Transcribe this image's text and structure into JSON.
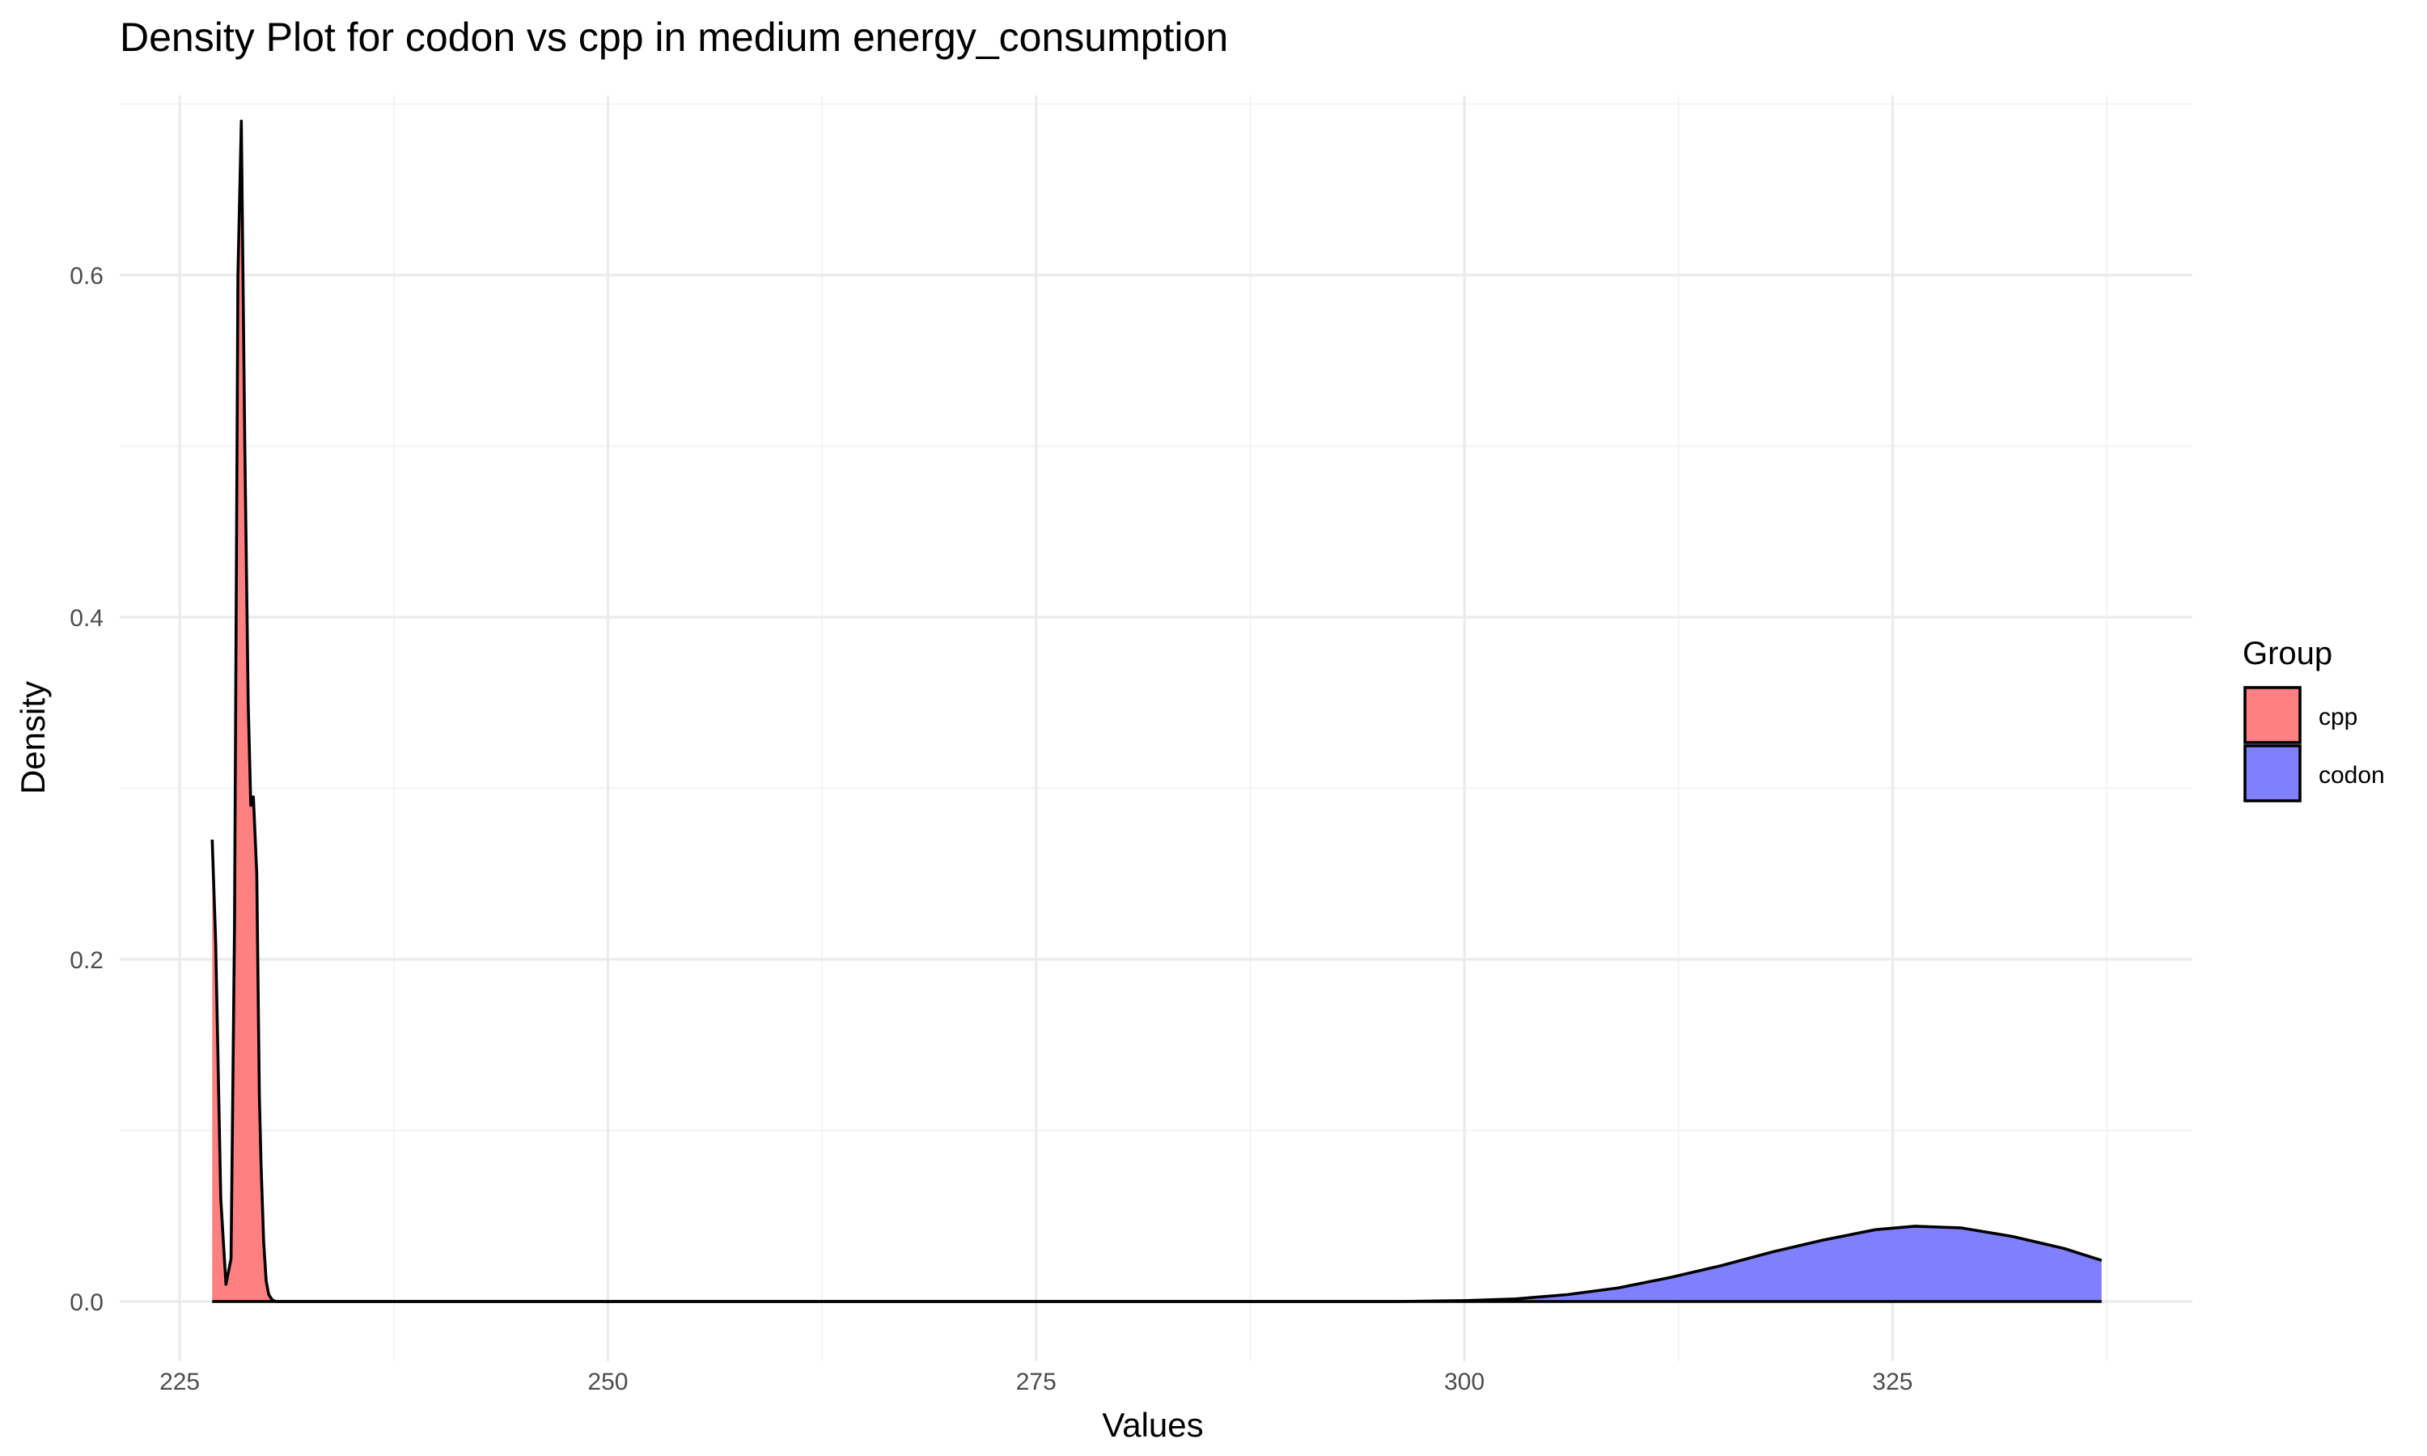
{
  "chart_data": {
    "type": "area",
    "title": "Density Plot for codon vs cpp in medium energy_consumption",
    "xlabel": "Values",
    "ylabel": "Density",
    "xlim": [
      221.5,
      342.5
    ],
    "ylim": [
      -0.035,
      0.705
    ],
    "x_ticks": [
      225,
      250,
      275,
      300,
      325
    ],
    "x_tick_labels": [
      "225",
      "250",
      "275",
      "300",
      "325"
    ],
    "y_ticks": [
      0.0,
      0.2,
      0.4,
      0.6
    ],
    "y_tick_labels": [
      "0.0",
      "0.2",
      "0.4",
      "0.6"
    ],
    "grid": true,
    "legend": {
      "title": "Group",
      "position": "right"
    },
    "series": [
      {
        "name": "cpp",
        "color": "#ff8080",
        "x": [
          226.9,
          227.1,
          227.4,
          227.7,
          228.0,
          228.2,
          228.4,
          228.6,
          228.8,
          229.0,
          229.15,
          229.3,
          229.5,
          229.65,
          229.75,
          229.9,
          230.05,
          230.2,
          230.4,
          230.6,
          230.8,
          231.0,
          232.0,
          250.0,
          275.0,
          300.0,
          320.0,
          330.0,
          337.2
        ],
        "y": [
          0.27,
          0.21,
          0.06,
          0.01,
          0.025,
          0.22,
          0.6,
          0.69,
          0.5,
          0.35,
          0.29,
          0.295,
          0.25,
          0.12,
          0.08,
          0.035,
          0.012,
          0.004,
          0.001,
          0.0,
          0.0,
          0.0,
          0.0,
          0.0,
          0.0,
          0.0,
          0.0,
          0.0,
          0.0
        ]
      },
      {
        "name": "codon",
        "color": "#8080ff",
        "x": [
          226.9,
          250.0,
          280.0,
          296.0,
          300.0,
          303.0,
          306.0,
          309.0,
          312.0,
          315.0,
          318.0,
          321.0,
          324.0,
          326.3,
          329.0,
          332.0,
          335.0,
          337.2
        ],
        "y": [
          0.0,
          0.0,
          0.0,
          0.0,
          0.0005,
          0.0015,
          0.004,
          0.008,
          0.014,
          0.021,
          0.029,
          0.036,
          0.042,
          0.044,
          0.043,
          0.038,
          0.031,
          0.024
        ]
      }
    ]
  }
}
